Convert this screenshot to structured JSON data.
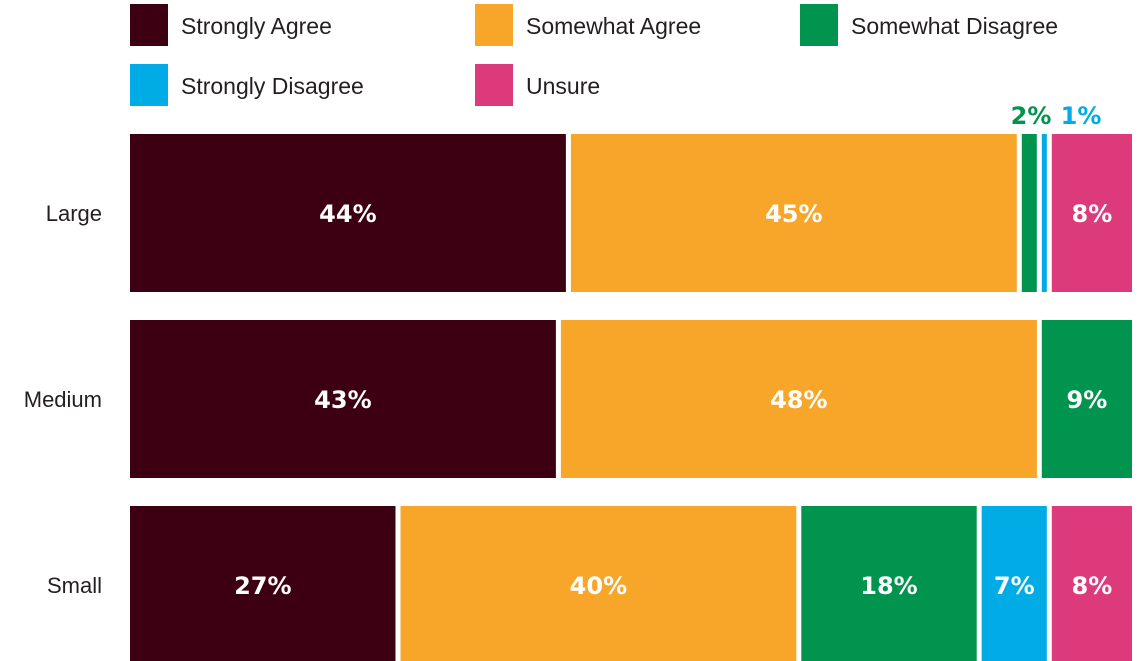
{
  "chart_data": {
    "type": "bar",
    "orientation": "horizontal",
    "stacked": true,
    "title": "",
    "xlabel": "",
    "ylabel": "",
    "xlim": [
      0,
      100
    ],
    "grid": false,
    "legend_position": "top",
    "categories": [
      "Large",
      "Medium",
      "Small"
    ],
    "series": [
      {
        "name": "Strongly Agree",
        "color": "#3d0013",
        "label_color": "#ffffff",
        "values": [
          44,
          43,
          27
        ],
        "labels": [
          "44%",
          "43%",
          "27%"
        ]
      },
      {
        "name": "Somewhat Agree",
        "color": "#f8a62a",
        "label_color": "#ffffff",
        "values": [
          45,
          48,
          40
        ],
        "labels": [
          "45%",
          "48%",
          "40%"
        ]
      },
      {
        "name": "Somewhat Disagree",
        "color": "#00944f",
        "label_color": "#ffffff",
        "values": [
          2,
          9,
          18
        ],
        "labels": [
          "2%",
          "9%",
          "18%"
        ]
      },
      {
        "name": "Strongly Disagree",
        "color": "#00abe6",
        "label_color": "#ffffff",
        "values": [
          1,
          0,
          7
        ],
        "labels": [
          "1%",
          "",
          "7%"
        ]
      },
      {
        "name": "Unsure",
        "color": "#dc3a7b",
        "label_color": "#ffffff",
        "values": [
          8,
          0,
          8
        ],
        "labels": [
          "8%",
          "",
          "8%"
        ]
      }
    ],
    "outside_labels": [
      {
        "category": "Large",
        "series": "Somewhat Disagree",
        "text": "2%",
        "color": "#00944f"
      },
      {
        "category": "Large",
        "series": "Strongly Disagree",
        "text": "1%",
        "color": "#00abe6"
      }
    ]
  }
}
